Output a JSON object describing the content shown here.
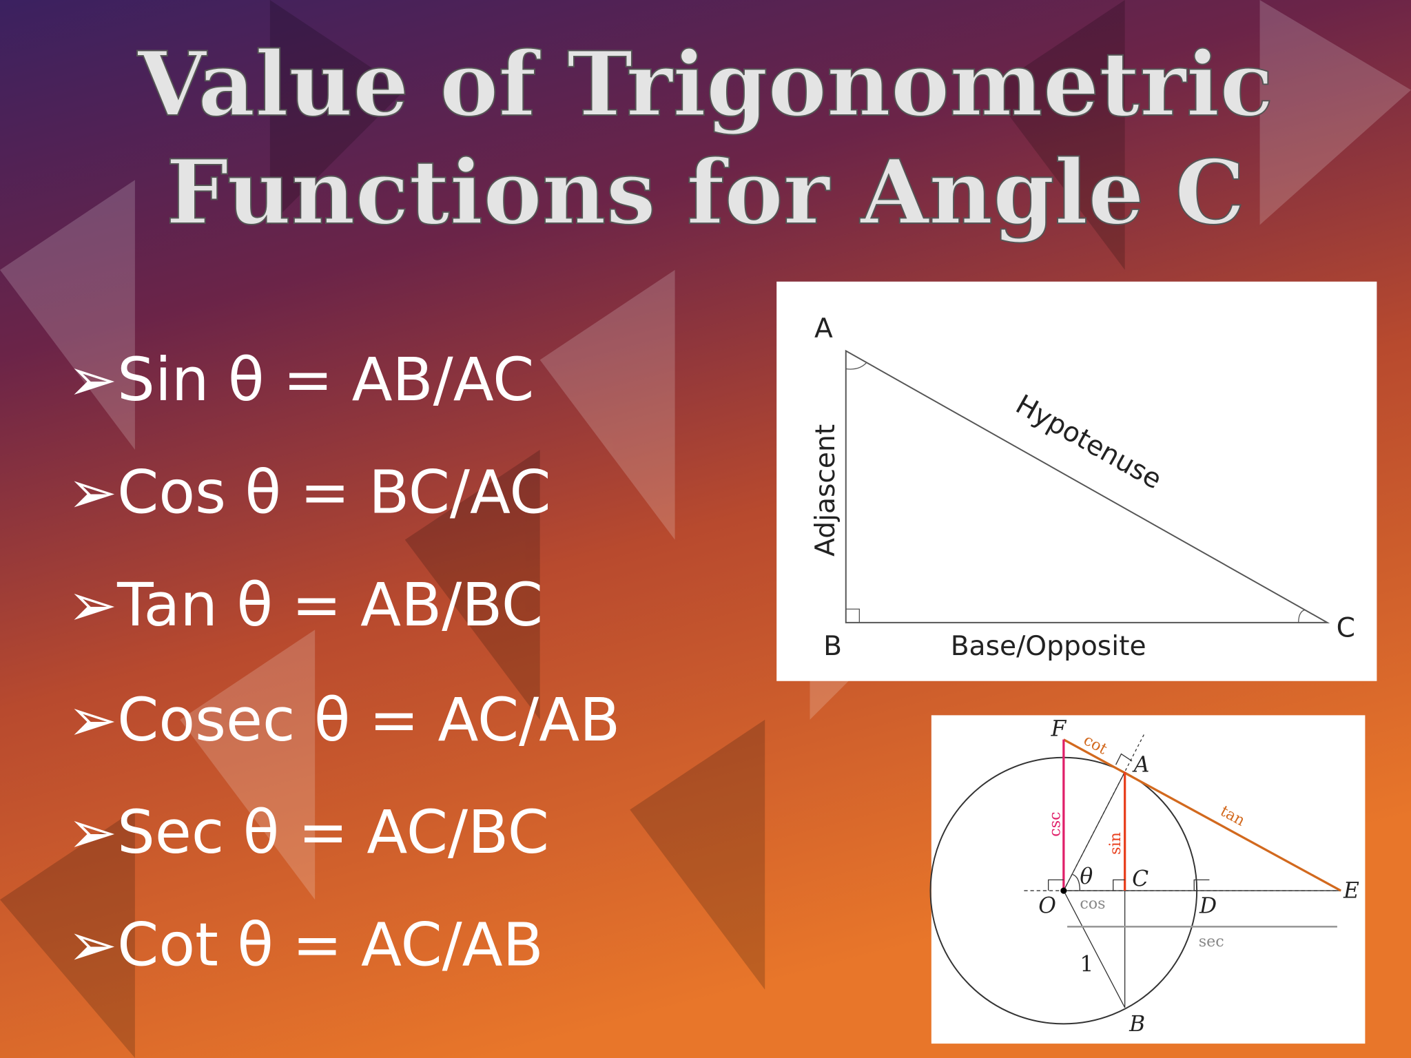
{
  "header": {
    "title_lines": [
      "Value of Trigonometric",
      "Functions for Angle C"
    ]
  },
  "bullets": [
    "➢Sin θ = AB/AC",
    "➢Cos θ = BC/AC",
    "➢Tan θ = AB/BC",
    "➢Cosec θ = AC/AB",
    "➢Sec θ = AC/BC",
    "➢Cot θ = AC/AB"
  ],
  "triangle_diagram": {
    "vertices": {
      "A": "A",
      "B": "B",
      "C": "C"
    },
    "sides": {
      "adjacent": "Adjascent",
      "hypotenuse": "Hypotenuse",
      "base": "Base/Opposite"
    }
  },
  "circle_diagram": {
    "points": {
      "F": "F",
      "A": "A",
      "C": "C",
      "E": "E",
      "O": "O",
      "D": "D",
      "B": "B"
    },
    "segments": {
      "cot": "cot",
      "tan": "tan",
      "csc": "csc",
      "sin": "sin",
      "cos": "cos",
      "sec": "sec",
      "radius": "1"
    },
    "angle": "θ"
  }
}
